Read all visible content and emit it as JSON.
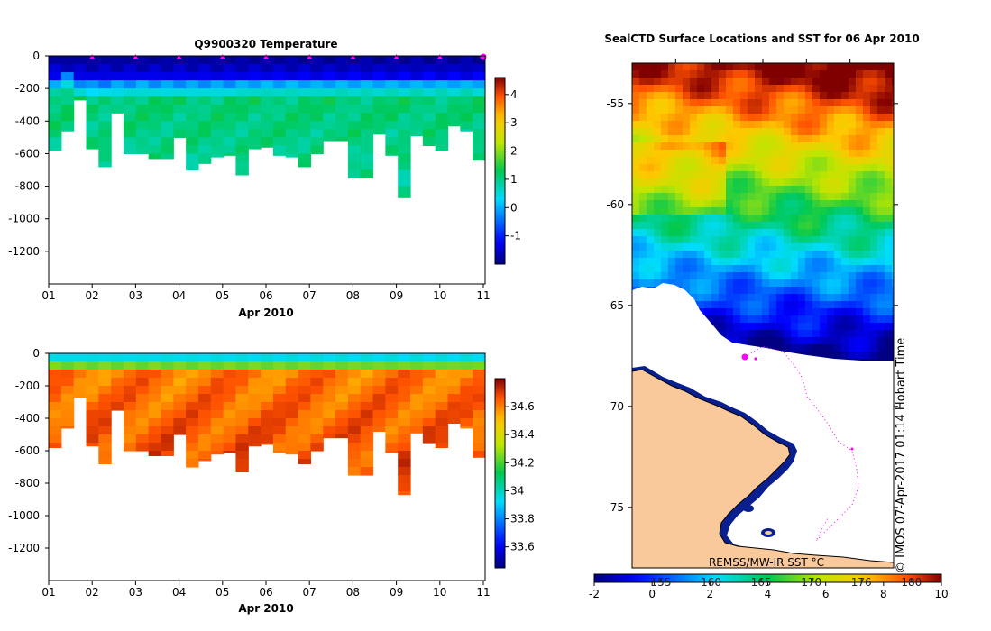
{
  "chart_data": [
    {
      "type": "heatmap",
      "title": "Q9900320  Temperature",
      "xlabel": "Apr 2010",
      "ylabel": "",
      "x_ticks": [
        "01",
        "02",
        "03",
        "04",
        "05",
        "06",
        "07",
        "08",
        "09",
        "10",
        "11"
      ],
      "ylim": [
        -1400,
        0
      ],
      "y_ticks": [
        0,
        -200,
        -400,
        -600,
        -800,
        -1000,
        -1200
      ],
      "colorbar": {
        "min": -2,
        "max": 4.6,
        "ticks": [
          -1,
          0,
          1,
          2,
          3,
          4
        ]
      },
      "profile_max_depth": [
        -580,
        -460,
        -270,
        -570,
        -680,
        -350,
        -600,
        -600,
        -630,
        -630,
        -500,
        -700,
        -660,
        -620,
        -610,
        -730,
        -570,
        -560,
        -610,
        -620,
        -680,
        -600,
        -520,
        -520,
        -750,
        -750,
        -480,
        -610,
        -870,
        -490,
        -550,
        -580,
        -430,
        -460,
        -640
      ],
      "thermocline_depth": [
        -130,
        -110,
        -150,
        -160,
        -160,
        -150,
        -150,
        -145,
        -150,
        -150,
        -150,
        -150,
        -150,
        -150,
        -150,
        -145,
        -140,
        -140,
        -140,
        -140,
        -140,
        -145,
        -140,
        -140,
        -140,
        -140,
        -140,
        -140,
        -140,
        -140,
        -140,
        -140,
        -140,
        -140,
        -140
      ],
      "surface_temp": -1.8,
      "deep_temp": 1.1,
      "markers": [
        "01.0",
        "02.0",
        "03.0",
        "04.0",
        "05.0",
        "06.0",
        "07.0",
        "08.0",
        "09.0",
        "10.0",
        "11.0"
      ]
    },
    {
      "type": "heatmap",
      "title": "",
      "xlabel": "Apr 2010",
      "ylabel": "",
      "x_ticks": [
        "01",
        "02",
        "03",
        "04",
        "05",
        "06",
        "07",
        "08",
        "09",
        "10",
        "11"
      ],
      "ylim": [
        -1400,
        0
      ],
      "y_ticks": [
        0,
        -200,
        -400,
        -600,
        -800,
        -1000,
        -1200
      ],
      "colorbar": {
        "min": 33.45,
        "max": 34.8,
        "ticks": [
          33.6,
          33.8,
          34,
          34.2,
          34.4,
          34.6
        ]
      },
      "surface_salinity": 33.95,
      "deep_salinity": 34.7
    },
    {
      "type": "heatmap",
      "title": "SealCTD Surface Locations and SST for 06 Apr 2010",
      "xlabel": "",
      "ylabel": "",
      "y_ticks": [
        "-55",
        "-60",
        "-65",
        "-70",
        "-75"
      ],
      "lat_range": [
        -78,
        -53
      ],
      "colorbar": {
        "min": -2,
        "max": 10,
        "ticks_c": [
          "-2",
          "0",
          "2",
          "4",
          "6",
          "8",
          "10"
        ],
        "ticks_f": [
          "155",
          "160",
          "165",
          "170",
          "176",
          "180"
        ]
      },
      "colorbar_label": "REMSS/MW-IR SST °C",
      "credit": "© IMOS 07-Apr-2017 01:14 Hobart Time",
      "sst_range_c": [
        -1.8,
        9.5
      ],
      "track_color": "#ff00ff"
    }
  ]
}
